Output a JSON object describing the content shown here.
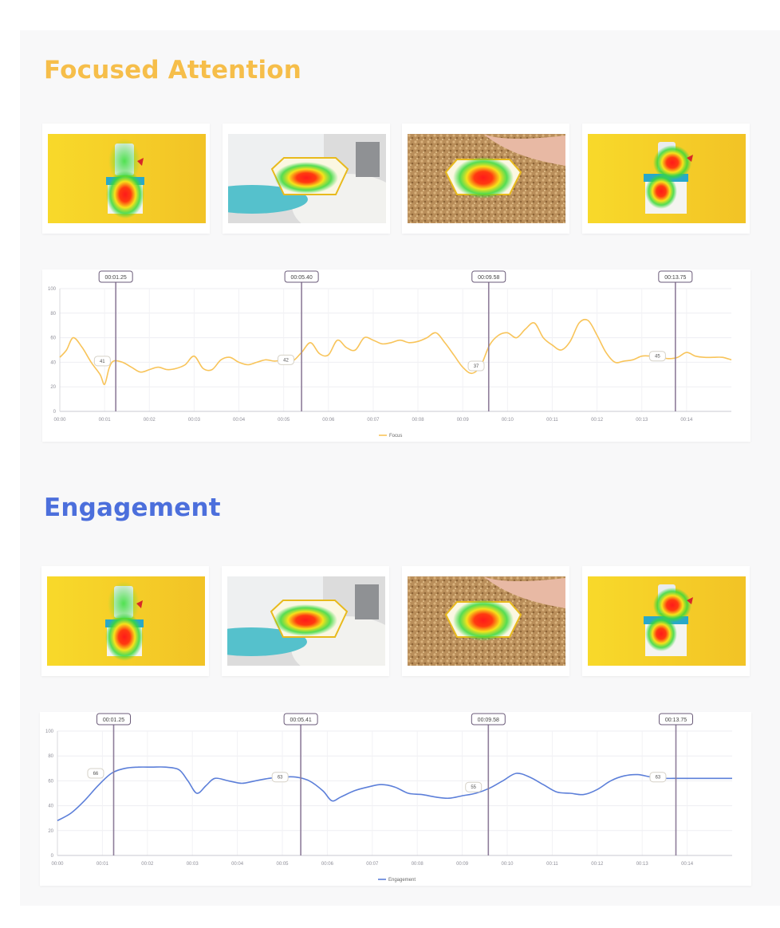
{
  "sections": [
    {
      "title": "Focused Attention",
      "color": "#f6be4a",
      "thumbnails": [
        "product-pack-heatmap",
        "grinder-label-heatmap",
        "crumbs-label-heatmap",
        "pack-close-heatmap"
      ],
      "chart_data": {
        "type": "line",
        "x_ticks": [
          "00:00",
          "00:01",
          "00:02",
          "00:03",
          "00:04",
          "00:05",
          "00:06",
          "00:07",
          "00:08",
          "00:09",
          "00:10",
          "00:11",
          "00:12",
          "00:13",
          "00:14"
        ],
        "y_ticks": [
          0,
          20,
          40,
          60,
          80,
          100
        ],
        "ylim": [
          0,
          100
        ],
        "xlim": [
          0,
          15
        ],
        "legend": "Focus",
        "legend_position": "bottom-center",
        "grid": true,
        "series": [
          {
            "name": "Focus",
            "color": "#f8c45a",
            "x": [
              0,
              0.15,
              0.3,
              0.5,
              0.7,
              0.9,
              1.0,
              1.1,
              1.2,
              1.4,
              1.6,
              1.8,
              2.0,
              2.2,
              2.4,
              2.6,
              2.8,
              3.0,
              3.2,
              3.4,
              3.6,
              3.8,
              4.0,
              4.2,
              4.4,
              4.6,
              4.8,
              5.0,
              5.2,
              5.4,
              5.6,
              5.8,
              6.0,
              6.2,
              6.4,
              6.6,
              6.8,
              7.0,
              7.2,
              7.4,
              7.6,
              7.8,
              8.0,
              8.2,
              8.4,
              8.6,
              8.8,
              9.0,
              9.2,
              9.4,
              9.6,
              9.8,
              10.0,
              10.2,
              10.4,
              10.6,
              10.8,
              11.0,
              11.2,
              11.4,
              11.6,
              11.8,
              12.0,
              12.2,
              12.4,
              12.6,
              12.8,
              13.0,
              13.2,
              13.4,
              13.6,
              13.8,
              14.0,
              14.2,
              14.4,
              14.6,
              14.8,
              15.0
            ],
            "y": [
              44,
              50,
              60,
              52,
              40,
              30,
              22,
              35,
              41,
              40,
              36,
              32,
              34,
              36,
              34,
              35,
              38,
              45,
              35,
              34,
              42,
              44,
              40,
              38,
              40,
              42,
              41,
              42,
              41,
              48,
              56,
              47,
              46,
              58,
              52,
              50,
              60,
              58,
              55,
              56,
              58,
              56,
              57,
              60,
              64,
              56,
              46,
              36,
              31,
              37,
              54,
              62,
              64,
              60,
              67,
              72,
              60,
              54,
              50,
              57,
              72,
              74,
              62,
              48,
              40,
              41,
              42,
              45,
              45,
              44,
              43,
              44,
              48,
              45,
              44,
              44,
              44,
              42
            ]
          }
        ],
        "markers": [
          {
            "label": "00:01.25",
            "x": 1.25
          },
          {
            "label": "00:05.40",
            "x": 5.4
          },
          {
            "label": "00:09.58",
            "x": 9.58
          },
          {
            "label": "00:13.75",
            "x": 13.75
          }
        ],
        "value_labels": [
          {
            "text": "41",
            "x": 0.95,
            "y": 41
          },
          {
            "text": "42",
            "x": 5.05,
            "y": 42
          },
          {
            "text": "37",
            "x": 9.3,
            "y": 37
          },
          {
            "text": "45",
            "x": 13.35,
            "y": 45
          }
        ]
      }
    },
    {
      "title": "Engagement",
      "color": "#4c6fdc",
      "thumbnails": [
        "product-pack-heatmap",
        "grinder-label-heatmap",
        "crumbs-label-heatmap",
        "pack-close-heatmap"
      ],
      "chart_data": {
        "type": "line",
        "x_ticks": [
          "00:00",
          "00:01",
          "00:02",
          "00:03",
          "00:04",
          "00:05",
          "00:06",
          "00:07",
          "00:08",
          "00:09",
          "00:10",
          "00:11",
          "00:12",
          "00:13",
          "00:14"
        ],
        "y_ticks": [
          0,
          20,
          40,
          60,
          80,
          100
        ],
        "ylim": [
          0,
          100
        ],
        "xlim": [
          0,
          15
        ],
        "legend": "Engagement",
        "legend_position": "bottom-center",
        "grid": true,
        "series": [
          {
            "name": "Engagement",
            "color": "#5c7fd9",
            "x": [
              0,
              0.3,
              0.6,
              0.9,
              1.2,
              1.5,
              1.8,
              2.1,
              2.4,
              2.7,
              2.9,
              3.1,
              3.3,
              3.5,
              3.8,
              4.1,
              4.4,
              4.7,
              5.0,
              5.3,
              5.6,
              5.9,
              6.1,
              6.3,
              6.6,
              6.9,
              7.2,
              7.5,
              7.8,
              8.1,
              8.4,
              8.7,
              9.0,
              9.3,
              9.6,
              9.9,
              10.2,
              10.5,
              10.8,
              11.1,
              11.4,
              11.7,
              12.0,
              12.3,
              12.6,
              12.9,
              13.2,
              13.5,
              13.8,
              14.1,
              14.4,
              14.7,
              15.0
            ],
            "y": [
              28,
              34,
              44,
              56,
              66,
              70,
              71,
              71,
              71,
              69,
              60,
              50,
              56,
              62,
              60,
              58,
              60,
              62,
              63,
              63,
              60,
              52,
              44,
              47,
              52,
              55,
              57,
              55,
              50,
              49,
              47,
              46,
              48,
              50,
              54,
              60,
              66,
              63,
              57,
              51,
              50,
              49,
              53,
              60,
              64,
              65,
              63,
              62,
              62,
              62,
              62,
              62,
              62
            ]
          }
        ],
        "markers": [
          {
            "label": "00:01.25",
            "x": 1.25
          },
          {
            "label": "00:05.41",
            "x": 5.41
          },
          {
            "label": "00:09.58",
            "x": 9.58
          },
          {
            "label": "00:13.75",
            "x": 13.75
          }
        ],
        "value_labels": [
          {
            "text": "66",
            "x": 0.85,
            "y": 66
          },
          {
            "text": "63",
            "x": 4.95,
            "y": 63
          },
          {
            "text": "55",
            "x": 9.25,
            "y": 55
          },
          {
            "text": "63",
            "x": 13.35,
            "y": 63
          }
        ]
      }
    }
  ]
}
